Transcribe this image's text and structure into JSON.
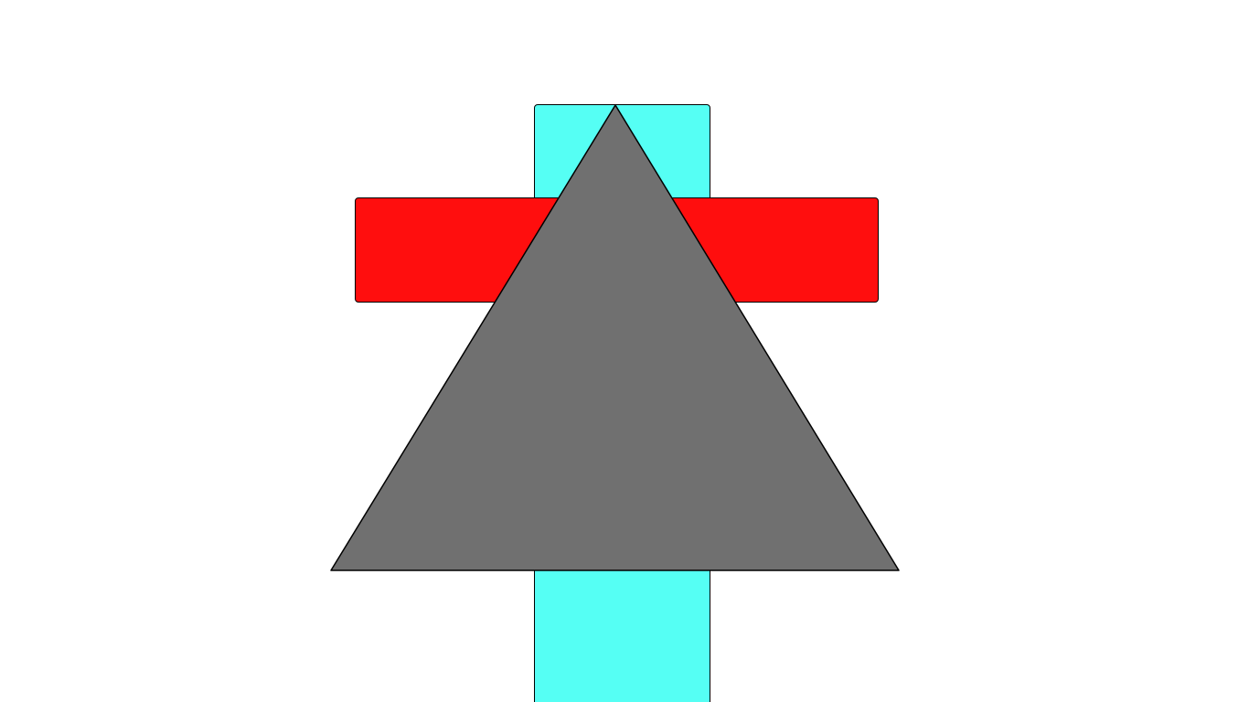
{
  "scene": {
    "background": "#ffffff",
    "shapes": [
      {
        "kind": "rounded-rectangle",
        "name": "vertical-bar",
        "fill": "#55fff4",
        "stroke": "#000000"
      },
      {
        "kind": "rounded-rectangle",
        "name": "horizontal-bar",
        "fill": "#ff0e0e",
        "stroke": "#000000"
      },
      {
        "kind": "triangle",
        "name": "triangle",
        "fill": "#707070",
        "stroke": "#000000"
      }
    ]
  }
}
